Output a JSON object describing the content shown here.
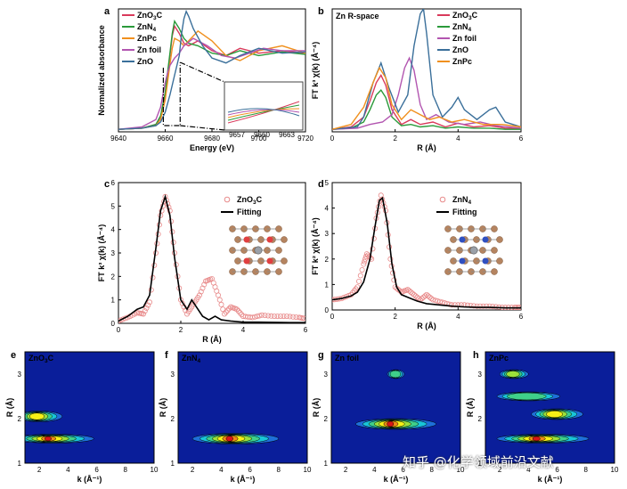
{
  "watermark": "知乎 @化学领域前沿文献",
  "colors": {
    "ZnO3C": "#d93a5b",
    "ZnN4": "#2a9a3a",
    "ZnPc": "#f0901e",
    "Znfoil": "#b255b0",
    "ZnO": "#3a6f9a",
    "fit": "#000000",
    "expt": "#e88a8a"
  },
  "chart_data": [
    {
      "type": "line",
      "letter": "a",
      "xlabel": "Energy (eV)",
      "ylabel": "Normalized absorbance",
      "xlim": [
        9640,
        9720
      ],
      "xticks": [
        9640,
        9660,
        9680,
        9700,
        9720
      ],
      "legend": "top-left",
      "inset": {
        "xticks": [
          "9657",
          "9660",
          "9663"
        ]
      },
      "series": [
        {
          "name": "ZnO",
          "sub": "3",
          "tail": "C",
          "color": "#d93a5b",
          "x": [
            9640,
            9650,
            9656,
            9658,
            9660,
            9661,
            9662,
            9663,
            9664,
            9666,
            9668,
            9670,
            9674,
            9680,
            9686,
            9692,
            9700,
            9710,
            9720
          ],
          "y": [
            0.02,
            0.03,
            0.06,
            0.12,
            0.3,
            0.45,
            0.62,
            0.78,
            0.86,
            0.8,
            0.72,
            0.7,
            0.74,
            0.66,
            0.62,
            0.68,
            0.64,
            0.66,
            0.64
          ]
        },
        {
          "name": "ZnN",
          "sub": "4",
          "tail": "",
          "color": "#2a9a3a",
          "x": [
            9640,
            9650,
            9656,
            9658,
            9660,
            9661,
            9662,
            9663,
            9664,
            9666,
            9668,
            9670,
            9674,
            9680,
            9686,
            9692,
            9700,
            9710,
            9720
          ],
          "y": [
            0.02,
            0.03,
            0.06,
            0.13,
            0.32,
            0.48,
            0.64,
            0.8,
            0.9,
            0.84,
            0.76,
            0.72,
            0.7,
            0.64,
            0.62,
            0.66,
            0.62,
            0.65,
            0.63
          ]
        },
        {
          "name": "ZnPc",
          "sub": "",
          "tail": "",
          "color": "#f0901e",
          "x": [
            9640,
            9650,
            9656,
            9658,
            9660,
            9661,
            9662,
            9663,
            9664,
            9666,
            9668,
            9670,
            9674,
            9680,
            9686,
            9692,
            9700,
            9710,
            9720
          ],
          "y": [
            0.02,
            0.03,
            0.05,
            0.1,
            0.26,
            0.4,
            0.55,
            0.68,
            0.76,
            0.74,
            0.7,
            0.74,
            0.82,
            0.74,
            0.62,
            0.58,
            0.66,
            0.7,
            0.64
          ]
        },
        {
          "name": "Zn foil",
          "sub": "",
          "tail": "",
          "color": "#b255b0",
          "x": [
            9640,
            9650,
            9656,
            9658,
            9659,
            9660,
            9661,
            9662,
            9664,
            9666,
            9668,
            9672,
            9678,
            9684,
            9690,
            9696,
            9702,
            9710,
            9720
          ],
          "y": [
            0.02,
            0.04,
            0.1,
            0.2,
            0.3,
            0.4,
            0.48,
            0.54,
            0.6,
            0.64,
            0.7,
            0.76,
            0.7,
            0.62,
            0.6,
            0.64,
            0.68,
            0.66,
            0.66
          ]
        },
        {
          "name": "ZnO",
          "sub": "",
          "tail": "",
          "color": "#3a6f9a",
          "x": [
            9640,
            9650,
            9656,
            9658,
            9660,
            9662,
            9664,
            9666,
            9667,
            9668,
            9669,
            9670,
            9672,
            9676,
            9680,
            9686,
            9692,
            9700,
            9710,
            9720
          ],
          "y": [
            0.02,
            0.03,
            0.05,
            0.08,
            0.16,
            0.3,
            0.46,
            0.62,
            0.8,
            0.92,
            0.98,
            0.94,
            0.84,
            0.7,
            0.6,
            0.56,
            0.62,
            0.68,
            0.64,
            0.65
          ]
        }
      ]
    },
    {
      "type": "line",
      "letter": "b",
      "title": "Zn R-space",
      "xlabel": "R (Å)",
      "ylabel": "FT k³ χ(k) (Å⁻⁴)",
      "xlim": [
        0,
        6
      ],
      "ylim": [
        0,
        1
      ],
      "xticks": [
        0,
        2,
        4,
        6
      ],
      "legend": "top-right",
      "series": [
        {
          "name": "ZnO",
          "sub": "3",
          "tail": "C",
          "color": "#d93a5b",
          "x": [
            0,
            0.6,
            1.0,
            1.2,
            1.4,
            1.55,
            1.7,
            1.9,
            2.2,
            2.5,
            2.8,
            3.2,
            3.6,
            4.0,
            4.5,
            5.0,
            5.5,
            6.0
          ],
          "y": [
            0.02,
            0.04,
            0.12,
            0.25,
            0.4,
            0.46,
            0.38,
            0.18,
            0.06,
            0.1,
            0.06,
            0.08,
            0.04,
            0.07,
            0.04,
            0.05,
            0.03,
            0.03
          ]
        },
        {
          "name": "ZnN",
          "sub": "4",
          "tail": "",
          "color": "#2a9a3a",
          "x": [
            0,
            0.6,
            1.0,
            1.2,
            1.4,
            1.55,
            1.7,
            1.9,
            2.2,
            2.5,
            2.8,
            3.2,
            3.6,
            4.0,
            4.5,
            5.0,
            5.5,
            6.0
          ],
          "y": [
            0.02,
            0.03,
            0.08,
            0.18,
            0.3,
            0.34,
            0.28,
            0.12,
            0.05,
            0.06,
            0.04,
            0.05,
            0.03,
            0.04,
            0.03,
            0.03,
            0.02,
            0.02
          ]
        },
        {
          "name": "Zn foil",
          "sub": "",
          "tail": "",
          "color": "#b255b0",
          "x": [
            0,
            0.8,
            1.2,
            1.6,
            1.9,
            2.1,
            2.3,
            2.45,
            2.6,
            2.8,
            3.0,
            3.3,
            3.7,
            4.2,
            4.7,
            5.2,
            6.0
          ],
          "y": [
            0.02,
            0.03,
            0.06,
            0.08,
            0.14,
            0.3,
            0.52,
            0.6,
            0.5,
            0.22,
            0.1,
            0.14,
            0.08,
            0.06,
            0.08,
            0.05,
            0.03
          ]
        },
        {
          "name": "ZnO",
          "sub": "",
          "tail": "",
          "color": "#3a6f9a",
          "x": [
            0,
            0.8,
            1.0,
            1.3,
            1.55,
            1.8,
            2.1,
            2.4,
            2.6,
            2.8,
            2.9,
            3.0,
            3.2,
            3.5,
            3.8,
            4.0,
            4.2,
            4.6,
            5.0,
            5.2,
            5.5,
            6.0
          ],
          "y": [
            0.02,
            0.04,
            0.12,
            0.4,
            0.56,
            0.36,
            0.16,
            0.3,
            0.7,
            0.96,
            1.0,
            0.8,
            0.3,
            0.12,
            0.2,
            0.28,
            0.18,
            0.1,
            0.18,
            0.2,
            0.08,
            0.04
          ]
        },
        {
          "name": "ZnPc",
          "sub": "",
          "tail": "",
          "color": "#f0901e",
          "x": [
            0,
            0.6,
            1.0,
            1.3,
            1.5,
            1.7,
            1.9,
            2.2,
            2.5,
            2.8,
            3.1,
            3.4,
            3.8,
            4.2,
            4.8,
            5.4,
            6.0
          ],
          "y": [
            0.02,
            0.06,
            0.2,
            0.4,
            0.52,
            0.44,
            0.22,
            0.1,
            0.18,
            0.14,
            0.1,
            0.12,
            0.08,
            0.1,
            0.06,
            0.06,
            0.04
          ]
        }
      ]
    },
    {
      "type": "line",
      "letter": "c",
      "xlabel": "R (Å)",
      "ylabel": "FT k³ χ(k) (Å⁻⁴)",
      "xlim": [
        0,
        6
      ],
      "ylim": [
        0,
        6
      ],
      "xticks": [
        0,
        2,
        4,
        6
      ],
      "yticks": [
        0,
        1,
        2,
        3,
        4,
        5,
        6
      ],
      "legend": "right",
      "series": [
        {
          "name": "ZnO",
          "sub": "3",
          "tail": "C",
          "style": "circles",
          "color": "#e88a8a",
          "x": [
            0,
            0.3,
            0.6,
            0.8,
            1.0,
            1.2,
            1.35,
            1.5,
            1.65,
            1.8,
            2.0,
            2.2,
            2.4,
            2.6,
            2.8,
            3.0,
            3.2,
            3.4,
            3.6,
            3.8,
            4.0,
            4.3,
            4.6,
            5.0,
            5.4,
            5.8,
            6.0
          ],
          "y": [
            0.1,
            0.25,
            0.45,
            0.4,
            0.9,
            3.0,
            4.6,
            5.4,
            4.8,
            3.0,
            1.0,
            0.4,
            0.8,
            1.2,
            1.8,
            1.9,
            1.2,
            0.4,
            0.7,
            0.6,
            0.3,
            0.25,
            0.35,
            0.3,
            0.3,
            0.25,
            0.2
          ]
        },
        {
          "name": "Fitting",
          "sub": "",
          "tail": "",
          "style": "line",
          "color": "#000000",
          "x": [
            0,
            0.3,
            0.6,
            0.8,
            1.0,
            1.2,
            1.35,
            1.5,
            1.65,
            1.8,
            2.0,
            2.2,
            2.35,
            2.5,
            2.7,
            2.9,
            3.1,
            3.3,
            3.6,
            4.0,
            4.5,
            5.0,
            5.5,
            6.0
          ],
          "y": [
            0.1,
            0.3,
            0.6,
            0.7,
            1.2,
            3.2,
            4.8,
            5.4,
            4.6,
            2.8,
            1.0,
            0.6,
            1.0,
            0.7,
            0.3,
            0.15,
            0.3,
            0.15,
            0.1,
            0.05,
            0.05,
            0.04,
            0.03,
            0.03
          ]
        }
      ]
    },
    {
      "type": "line",
      "letter": "d",
      "xlabel": "R (Å)",
      "ylabel": "FT k² χ(k) (Å⁻⁴)",
      "xlim": [
        0,
        6
      ],
      "ylim": [
        0,
        5
      ],
      "xticks": [
        0,
        2,
        4,
        6
      ],
      "yticks": [
        0,
        1,
        2,
        3,
        4,
        5
      ],
      "legend": "right",
      "series": [
        {
          "name": "ZnN",
          "sub": "4",
          "tail": "",
          "style": "circles",
          "color": "#e88a8a",
          "x": [
            0,
            0.3,
            0.6,
            0.8,
            1.0,
            1.1,
            1.25,
            1.4,
            1.55,
            1.7,
            1.85,
            2.0,
            2.2,
            2.4,
            2.6,
            2.8,
            3.0,
            3.2,
            3.5,
            3.8,
            4.2,
            4.6,
            5.0,
            5.4,
            5.8,
            6.0
          ],
          "y": [
            0.4,
            0.45,
            0.6,
            0.9,
            1.8,
            2.2,
            2.0,
            3.6,
            4.5,
            3.9,
            2.0,
            0.9,
            0.7,
            0.8,
            0.6,
            0.4,
            0.6,
            0.4,
            0.3,
            0.2,
            0.2,
            0.15,
            0.15,
            0.1,
            0.1,
            0.1
          ]
        },
        {
          "name": "Fitting",
          "sub": "",
          "tail": "",
          "style": "line",
          "color": "#000000",
          "x": [
            0,
            0.3,
            0.6,
            0.8,
            1.0,
            1.2,
            1.35,
            1.5,
            1.6,
            1.75,
            1.9,
            2.05,
            2.2,
            2.4,
            2.7,
            3.0,
            3.4,
            3.8,
            4.2,
            4.6,
            5.0,
            5.5,
            6.0
          ],
          "y": [
            0.4,
            0.45,
            0.55,
            0.7,
            1.1,
            2.0,
            3.2,
            4.3,
            4.4,
            3.4,
            1.8,
            0.9,
            0.6,
            0.5,
            0.35,
            0.25,
            0.2,
            0.15,
            0.12,
            0.1,
            0.1,
            0.08,
            0.08
          ]
        }
      ]
    },
    {
      "type": "heatmap",
      "letter": "e",
      "name": "ZnO",
      "sub": "3",
      "tail": "C",
      "xlabel": "k (Å⁻¹)",
      "ylabel": "R (Å)",
      "xlim": [
        1,
        10
      ],
      "ylim": [
        1,
        3.5
      ],
      "xticks": [
        2,
        4,
        6,
        8,
        10
      ],
      "yticks": [
        1,
        2,
        3
      ],
      "blobs": [
        {
          "k": 3.0,
          "R": 1.55,
          "wk": 2.8,
          "wR": 0.1,
          "amp": 1.0
        },
        {
          "k": 2.0,
          "R": 2.05,
          "wk": 1.6,
          "wR": 0.12,
          "amp": 0.85
        }
      ]
    },
    {
      "type": "heatmap",
      "letter": "f",
      "name": "ZnN",
      "sub": "4",
      "tail": "",
      "xlabel": "k (Å⁻¹)",
      "ylabel": "R (Å)",
      "xlim": [
        1,
        10
      ],
      "ylim": [
        1,
        3.5
      ],
      "xticks": [
        2,
        4,
        6,
        8,
        10
      ],
      "yticks": [
        1,
        2,
        3
      ],
      "blobs": [
        {
          "k": 5.0,
          "R": 1.55,
          "wk": 3.0,
          "wR": 0.12,
          "amp": 1.0
        }
      ]
    },
    {
      "type": "heatmap",
      "letter": "g",
      "name": "Zn foil",
      "sub": "",
      "tail": "",
      "xlabel": "k (Å⁻¹)",
      "ylabel": "R (Å)",
      "xlim": [
        1,
        10
      ],
      "ylim": [
        1,
        3.5
      ],
      "xticks": [
        2,
        4,
        6,
        8,
        10
      ],
      "yticks": [
        1,
        2,
        3
      ],
      "blobs": [
        {
          "k": 5.5,
          "R": 1.88,
          "wk": 2.8,
          "wR": 0.12,
          "amp": 1.0
        },
        {
          "k": 5.5,
          "R": 3.0,
          "wk": 0.6,
          "wR": 0.1,
          "amp": 0.55
        }
      ]
    },
    {
      "type": "heatmap",
      "letter": "h",
      "name": "ZnPc",
      "sub": "",
      "tail": "",
      "xlabel": "k (Å⁻¹)",
      "ylabel": "R (Å)",
      "xlim": [
        1,
        10
      ],
      "ylim": [
        1,
        3.5
      ],
      "xticks": [
        2,
        4,
        6,
        8,
        10
      ],
      "yticks": [
        1,
        2,
        3
      ],
      "blobs": [
        {
          "k": 5.0,
          "R": 1.55,
          "wk": 3.2,
          "wR": 0.1,
          "amp": 1.0
        },
        {
          "k": 6.0,
          "R": 2.1,
          "wk": 1.8,
          "wR": 0.12,
          "amp": 0.8
        },
        {
          "k": 4.0,
          "R": 2.5,
          "wk": 2.2,
          "wR": 0.1,
          "amp": 0.55
        },
        {
          "k": 3.0,
          "R": 3.0,
          "wk": 1.0,
          "wR": 0.1,
          "amp": 0.6
        }
      ]
    }
  ]
}
